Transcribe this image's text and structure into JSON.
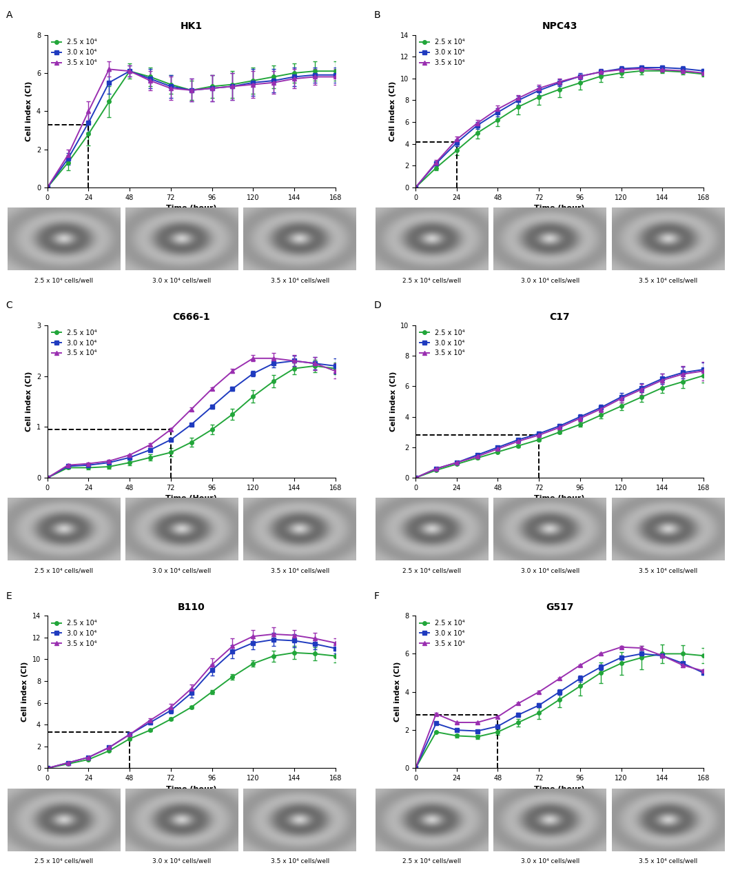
{
  "chart_data": [
    {
      "type": "line",
      "panel": "A",
      "title": "HK1",
      "x_label": "Time (hour)",
      "y_label": "Cell index (CI)",
      "x": [
        0,
        12,
        24,
        36,
        48,
        60,
        72,
        84,
        96,
        108,
        120,
        132,
        144,
        156,
        168
      ],
      "xlim": [
        0,
        168
      ],
      "xticks": [
        0,
        24,
        48,
        72,
        96,
        120,
        144,
        168
      ],
      "ylim": [
        0,
        8
      ],
      "yticks": [
        0,
        2,
        4,
        6,
        8
      ],
      "reference_line": {
        "x": 24,
        "y": 3.3
      },
      "legend": "upper left",
      "series": [
        {
          "name": "2.5 x 10⁴",
          "color": "#22a63a",
          "marker": "circle",
          "values": [
            0,
            1.3,
            2.8,
            4.5,
            6.1,
            5.8,
            5.4,
            5.1,
            5.3,
            5.4,
            5.6,
            5.8,
            6.0,
            6.1,
            6.1
          ],
          "errors": [
            0,
            0.4,
            0.6,
            0.8,
            0.4,
            0.5,
            0.5,
            0.5,
            0.6,
            0.7,
            0.7,
            0.6,
            0.5,
            0.5,
            0.5
          ]
        },
        {
          "name": "3.0 x 10⁴",
          "color": "#1f3bbf",
          "marker": "square",
          "values": [
            0,
            1.5,
            3.4,
            5.5,
            6.1,
            5.7,
            5.3,
            5.1,
            5.2,
            5.3,
            5.5,
            5.6,
            5.8,
            5.9,
            5.9
          ],
          "errors": [
            0,
            0.3,
            0.5,
            0.6,
            0.3,
            0.5,
            0.6,
            0.6,
            0.7,
            0.7,
            0.7,
            0.6,
            0.5,
            0.4,
            0.4
          ]
        },
        {
          "name": "3.5 x 10⁴",
          "color": "#9a2fb0",
          "marker": "triangle",
          "values": [
            0,
            1.7,
            4.0,
            6.2,
            6.1,
            5.6,
            5.2,
            5.1,
            5.2,
            5.3,
            5.4,
            5.5,
            5.7,
            5.8,
            5.8
          ],
          "errors": [
            0,
            0.3,
            0.5,
            0.4,
            0.3,
            0.5,
            0.6,
            0.6,
            0.7,
            0.7,
            0.7,
            0.6,
            0.5,
            0.4,
            0.4
          ]
        }
      ],
      "image_captions": [
        "2.5 x 10⁴ cells/well",
        "3.0 x 10⁴ cells/well",
        "3.5 x 10⁴ cells/well"
      ]
    },
    {
      "type": "line",
      "panel": "B",
      "title": "NPC43",
      "x_label": "Time (hour)",
      "y_label": "Cell index (CI)",
      "x": [
        0,
        12,
        24,
        36,
        48,
        60,
        72,
        84,
        96,
        108,
        120,
        132,
        144,
        156,
        168
      ],
      "xlim": [
        0,
        168
      ],
      "xticks": [
        0,
        24,
        48,
        72,
        96,
        120,
        144,
        168
      ],
      "ylim": [
        0,
        14
      ],
      "yticks": [
        0,
        2,
        4,
        6,
        8,
        10,
        12,
        14
      ],
      "reference_line": {
        "x": 24,
        "y": 4.2
      },
      "legend": "upper left",
      "series": [
        {
          "name": "2.5 x 10⁴",
          "color": "#22a63a",
          "marker": "circle",
          "values": [
            0,
            1.8,
            3.4,
            5.0,
            6.2,
            7.4,
            8.3,
            9.0,
            9.6,
            10.2,
            10.5,
            10.7,
            10.7,
            10.6,
            10.4
          ],
          "errors": [
            0,
            0.2,
            0.4,
            0.5,
            0.6,
            0.7,
            0.7,
            0.7,
            0.6,
            0.5,
            0.4,
            0.3,
            0.2,
            0.2,
            0.2
          ]
        },
        {
          "name": "3.0 x 10⁴",
          "color": "#1f3bbf",
          "marker": "square",
          "values": [
            0,
            2.2,
            4.1,
            5.7,
            6.9,
            8.0,
            8.9,
            9.6,
            10.2,
            10.6,
            10.9,
            11.0,
            11.0,
            10.9,
            10.7
          ],
          "errors": [
            0,
            0.2,
            0.3,
            0.3,
            0.4,
            0.4,
            0.4,
            0.3,
            0.3,
            0.3,
            0.2,
            0.2,
            0.2,
            0.2,
            0.2
          ]
        },
        {
          "name": "3.5 x 10⁴",
          "color": "#9a2fb0",
          "marker": "triangle",
          "values": [
            0,
            2.3,
            4.4,
            5.9,
            7.2,
            8.2,
            9.1,
            9.7,
            10.2,
            10.6,
            10.8,
            10.9,
            10.8,
            10.7,
            10.5
          ],
          "errors": [
            0,
            0.2,
            0.3,
            0.3,
            0.3,
            0.3,
            0.3,
            0.3,
            0.2,
            0.2,
            0.2,
            0.2,
            0.2,
            0.2,
            0.2
          ]
        }
      ],
      "image_captions": [
        "2.5 x 10⁴ cells/well",
        "3.0 x 10⁴ cells/well",
        "3.5 x 10⁴ cells/well"
      ]
    },
    {
      "type": "line",
      "panel": "C",
      "title": "C666-1",
      "x_label": "Time (Hour)",
      "y_label": "Cell index (CI)",
      "x": [
        0,
        12,
        24,
        36,
        48,
        60,
        72,
        84,
        96,
        108,
        120,
        132,
        144,
        156,
        168
      ],
      "xlim": [
        0,
        168
      ],
      "xticks": [
        0,
        24,
        48,
        72,
        96,
        120,
        144,
        168
      ],
      "ylim": [
        0,
        3
      ],
      "yticks": [
        0,
        1,
        2,
        3
      ],
      "reference_line": {
        "x": 72,
        "y": 0.95
      },
      "legend": "upper left",
      "series": [
        {
          "name": "2.5 x 10⁴",
          "color": "#22a63a",
          "marker": "circle",
          "values": [
            0,
            0.2,
            0.2,
            0.22,
            0.3,
            0.4,
            0.5,
            0.7,
            0.95,
            1.25,
            1.6,
            1.9,
            2.15,
            2.2,
            2.15
          ],
          "errors": [
            0,
            0.02,
            0.03,
            0.04,
            0.05,
            0.06,
            0.08,
            0.09,
            0.1,
            0.11,
            0.12,
            0.12,
            0.12,
            0.12,
            0.12
          ]
        },
        {
          "name": "3.0 x 10⁴",
          "color": "#1f3bbf",
          "marker": "square",
          "values": [
            0,
            0.23,
            0.25,
            0.3,
            0.4,
            0.55,
            0.75,
            1.05,
            1.4,
            1.75,
            2.05,
            2.25,
            2.3,
            2.25,
            2.2
          ],
          "errors": [
            0,
            0.02,
            0.02,
            0.02,
            0.03,
            0.03,
            0.03,
            0.03,
            0.04,
            0.04,
            0.05,
            0.08,
            0.1,
            0.12,
            0.15
          ]
        },
        {
          "name": "3.5 x 10⁴",
          "color": "#9a2fb0",
          "marker": "triangle",
          "values": [
            0,
            0.25,
            0.28,
            0.33,
            0.45,
            0.65,
            0.95,
            1.35,
            1.75,
            2.1,
            2.35,
            2.35,
            2.3,
            2.25,
            2.1
          ],
          "errors": [
            0,
            0.02,
            0.02,
            0.02,
            0.02,
            0.03,
            0.03,
            0.03,
            0.03,
            0.04,
            0.06,
            0.1,
            0.12,
            0.13,
            0.15
          ]
        }
      ],
      "image_captions": [
        "2.5 x 10⁴ cells/well",
        "3.0 x 10⁴ cells/well",
        "3.5 x 10⁴ cells/well"
      ]
    },
    {
      "type": "line",
      "panel": "D",
      "title": "C17",
      "x_label": "Time (hour)",
      "y_label": "Cell index (CI)",
      "x": [
        0,
        12,
        24,
        36,
        48,
        60,
        72,
        84,
        96,
        108,
        120,
        132,
        144,
        156,
        168
      ],
      "xlim": [
        0,
        168
      ],
      "xticks": [
        0,
        24,
        48,
        72,
        96,
        120,
        144,
        168
      ],
      "ylim": [
        0,
        10
      ],
      "yticks": [
        0,
        2,
        4,
        6,
        8,
        10
      ],
      "reference_line": {
        "x": 72,
        "y": 2.8
      },
      "legend": "upper left",
      "series": [
        {
          "name": "2.5 x 10⁴",
          "color": "#22a63a",
          "marker": "circle",
          "values": [
            0,
            0.5,
            0.9,
            1.3,
            1.7,
            2.1,
            2.5,
            3.0,
            3.5,
            4.1,
            4.7,
            5.3,
            5.9,
            6.3,
            6.7
          ],
          "errors": [
            0,
            0.05,
            0.05,
            0.06,
            0.07,
            0.08,
            0.1,
            0.12,
            0.15,
            0.2,
            0.25,
            0.3,
            0.35,
            0.4,
            0.45
          ]
        },
        {
          "name": "3.0 x 10⁴",
          "color": "#1f3bbf",
          "marker": "square",
          "values": [
            0,
            0.6,
            1.0,
            1.5,
            2.0,
            2.5,
            2.9,
            3.4,
            4.0,
            4.6,
            5.3,
            5.9,
            6.5,
            6.9,
            7.1
          ],
          "errors": [
            0,
            0.05,
            0.06,
            0.07,
            0.08,
            0.1,
            0.12,
            0.15,
            0.18,
            0.2,
            0.25,
            0.3,
            0.35,
            0.4,
            0.45
          ]
        },
        {
          "name": "3.5 x 10⁴",
          "color": "#9a2fb0",
          "marker": "triangle",
          "values": [
            0,
            0.6,
            1.0,
            1.4,
            1.9,
            2.4,
            2.8,
            3.3,
            3.9,
            4.5,
            5.2,
            5.8,
            6.4,
            6.8,
            7.0
          ],
          "errors": [
            0,
            0.05,
            0.06,
            0.07,
            0.08,
            0.1,
            0.12,
            0.15,
            0.18,
            0.2,
            0.25,
            0.35,
            0.45,
            0.55,
            0.6
          ]
        }
      ],
      "image_captions": [
        "2.5 x 10⁴ cells/well",
        "3.0 x 10⁴ cells/well",
        "3.5 x 10⁴ cells/well"
      ]
    },
    {
      "type": "line",
      "panel": "E",
      "title": "B110",
      "x_label": "Time (hour)",
      "y_label": "Cell index (CI)",
      "x": [
        0,
        12,
        24,
        36,
        48,
        60,
        72,
        84,
        96,
        108,
        120,
        132,
        144,
        156,
        168
      ],
      "xlim": [
        0,
        168
      ],
      "xticks": [
        0,
        24,
        48,
        72,
        96,
        120,
        144,
        168
      ],
      "ylim": [
        0,
        14
      ],
      "yticks": [
        0,
        2,
        4,
        6,
        8,
        10,
        12,
        14
      ],
      "reference_line": {
        "x": 48,
        "y": 3.3
      },
      "legend": "upper left",
      "series": [
        {
          "name": "2.5 x 10⁴",
          "color": "#22a63a",
          "marker": "circle",
          "values": [
            0,
            0.4,
            0.8,
            1.6,
            2.7,
            3.5,
            4.5,
            5.6,
            7.0,
            8.4,
            9.6,
            10.3,
            10.6,
            10.5,
            10.3
          ],
          "errors": [
            0,
            0.05,
            0.05,
            0.08,
            0.1,
            0.1,
            0.12,
            0.15,
            0.2,
            0.25,
            0.3,
            0.5,
            0.6,
            0.6,
            0.6
          ]
        },
        {
          "name": "3.0 x 10⁴",
          "color": "#1f3bbf",
          "marker": "square",
          "values": [
            0,
            0.5,
            1.0,
            1.9,
            3.1,
            4.2,
            5.3,
            6.9,
            9.0,
            10.7,
            11.5,
            11.8,
            11.7,
            11.4,
            11.0
          ],
          "errors": [
            0,
            0.05,
            0.08,
            0.1,
            0.15,
            0.2,
            0.3,
            0.4,
            0.5,
            0.6,
            0.6,
            0.6,
            0.6,
            0.5,
            0.5
          ]
        },
        {
          "name": "3.5 x 10⁴",
          "color": "#9a2fb0",
          "marker": "triangle",
          "values": [
            0,
            0.5,
            1.0,
            1.9,
            3.1,
            4.4,
            5.6,
            7.3,
            9.5,
            11.2,
            12.1,
            12.3,
            12.2,
            11.9,
            11.5
          ],
          "errors": [
            0,
            0.05,
            0.08,
            0.1,
            0.15,
            0.2,
            0.3,
            0.4,
            0.6,
            0.7,
            0.6,
            0.6,
            0.5,
            0.5,
            0.4
          ]
        }
      ],
      "image_captions": [
        "2.5 x 10⁴ cells/well",
        "3.0 x 10⁴ cells/well",
        "3.5 x 10⁴ cells/well"
      ]
    },
    {
      "type": "line",
      "panel": "F",
      "title": "G517",
      "x_label": "Time (hour)",
      "y_label": "Cell index (CI)",
      "x": [
        0,
        12,
        24,
        36,
        48,
        60,
        72,
        84,
        96,
        108,
        120,
        132,
        144,
        156,
        168
      ],
      "xlim": [
        0,
        168
      ],
      "xticks": [
        0,
        24,
        48,
        72,
        96,
        120,
        144,
        168
      ],
      "ylim": [
        0,
        8
      ],
      "yticks": [
        0,
        2,
        4,
        6,
        8
      ],
      "reference_line": {
        "x": 48,
        "y": 2.8
      },
      "legend": "upper left",
      "series": [
        {
          "name": "2.5 x 10⁴",
          "color": "#22a63a",
          "marker": "circle",
          "values": [
            0,
            1.9,
            1.7,
            1.65,
            1.9,
            2.4,
            2.9,
            3.6,
            4.3,
            5.0,
            5.5,
            5.8,
            6.0,
            6.0,
            5.9
          ],
          "errors": [
            0,
            0.05,
            0.08,
            0.1,
            0.15,
            0.2,
            0.3,
            0.4,
            0.5,
            0.55,
            0.6,
            0.6,
            0.5,
            0.45,
            0.4
          ]
        },
        {
          "name": "3.0 x 10⁴",
          "color": "#1f3bbf",
          "marker": "square",
          "values": [
            0,
            2.35,
            2.0,
            1.95,
            2.2,
            2.8,
            3.3,
            4.0,
            4.7,
            5.3,
            5.8,
            6.0,
            5.9,
            5.5,
            5.0
          ],
          "errors": [
            0,
            0.05,
            0.05,
            0.05,
            0.08,
            0.1,
            0.12,
            0.15,
            0.15,
            0.15,
            0.1,
            0.1,
            0.1,
            0.1,
            0.1
          ]
        },
        {
          "name": "3.5 x 10⁴",
          "color": "#9a2fb0",
          "marker": "triangle",
          "values": [
            0,
            2.85,
            2.4,
            2.4,
            2.7,
            3.4,
            4.0,
            4.7,
            5.4,
            6.0,
            6.35,
            6.3,
            5.9,
            5.4,
            5.1
          ],
          "errors": [
            0,
            0.05,
            0.05,
            0.05,
            0.05,
            0.05,
            0.05,
            0.05,
            0.05,
            0.05,
            0.05,
            0.1,
            0.1,
            0.1,
            0.1
          ]
        }
      ],
      "image_captions": [
        "2.5 x 10⁴ cells/well",
        "3.0 x 10⁴ cells/well",
        "3.5 x 10⁴ cells/well"
      ]
    }
  ]
}
